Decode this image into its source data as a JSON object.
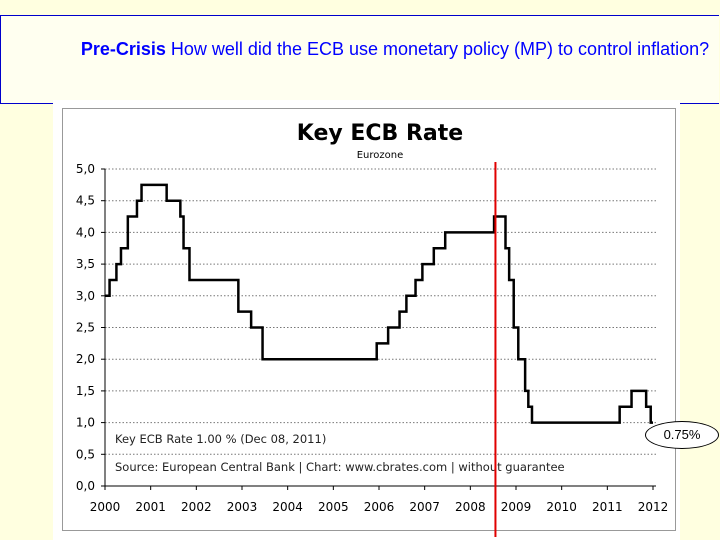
{
  "slide": {
    "title_bold": "Pre-Crisis",
    "title_rest": " How well did the ECB use monetary policy (MP) to control inflation?",
    "callout": "0.75%"
  },
  "chart_data": {
    "type": "line",
    "title": "Key ECB Rate",
    "subtitle": "Eurozone",
    "xlabel": "",
    "ylabel": "",
    "xlim": [
      2000,
      2012
    ],
    "ylim": [
      0,
      5
    ],
    "grid": true,
    "x_ticks": [
      "2000",
      "2001",
      "2002",
      "2003",
      "2004",
      "2005",
      "2006",
      "2007",
      "2008",
      "2009",
      "2010",
      "2011",
      "2012"
    ],
    "y_ticks": [
      "0,0",
      "0,5",
      "1,0",
      "1,5",
      "2,0",
      "2,5",
      "3,0",
      "3,5",
      "4,0",
      "4,5",
      "5,0"
    ],
    "note": "Key ECB Rate 1.00 % (Dec 08, 2011)",
    "source": "Source: European Central Bank | Chart: www.cbrates.com | without guarantee",
    "marker_line_year": 2008.55,
    "marker_line_color": "#e00000",
    "series": [
      {
        "name": "Key ECB Rate",
        "step": true,
        "x": [
          2000.0,
          2000.1,
          2000.25,
          2000.35,
          2000.5,
          2000.7,
          2000.8,
          2001.35,
          2001.65,
          2001.72,
          2001.85,
          2002.92,
          2003.2,
          2003.45,
          2005.95,
          2006.2,
          2006.45,
          2006.6,
          2006.8,
          2006.95,
          2007.2,
          2007.45,
          2008.52,
          2008.77,
          2008.85,
          2008.95,
          2009.05,
          2009.2,
          2009.27,
          2009.35,
          2011.27,
          2011.53,
          2011.85,
          2011.95,
          2012.0
        ],
        "values": [
          3.0,
          3.25,
          3.5,
          3.75,
          4.25,
          4.5,
          4.75,
          4.5,
          4.25,
          3.75,
          3.25,
          2.75,
          2.5,
          2.0,
          2.25,
          2.5,
          2.75,
          3.0,
          3.25,
          3.5,
          3.75,
          4.0,
          4.25,
          3.75,
          3.25,
          2.5,
          2.0,
          1.5,
          1.25,
          1.0,
          1.25,
          1.5,
          1.25,
          1.0,
          1.0
        ]
      }
    ]
  }
}
